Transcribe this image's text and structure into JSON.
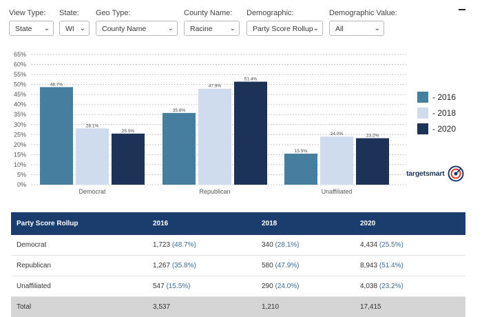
{
  "filters": [
    {
      "label": "View Type:",
      "value": "State"
    },
    {
      "label": "State:",
      "value": "WI"
    },
    {
      "label": "Geo Type:",
      "value": "County Name"
    },
    {
      "label": "County Name:",
      "value": "Racine"
    },
    {
      "label": "Demographic:",
      "value": "Party Score Rollup"
    },
    {
      "label": "Demographic Value:",
      "value": "All"
    }
  ],
  "chart_data": {
    "type": "bar",
    "categories": [
      "Democrat",
      "Republican",
      "Unaffiliated"
    ],
    "series": [
      {
        "name": "2016",
        "color": "#467e9f",
        "values": [
          48.7,
          35.8,
          15.5
        ],
        "labels": [
          "48.7%",
          "35.8%",
          "15.5%"
        ]
      },
      {
        "name": "2018",
        "color": "#cfdcee",
        "values": [
          28.1,
          47.9,
          24.0
        ],
        "labels": [
          "28.1%",
          "47.9%",
          "24.0%"
        ]
      },
      {
        "name": "2020",
        "color": "#1d3257",
        "values": [
          25.5,
          51.4,
          23.2
        ],
        "labels": [
          "25.5%",
          "51.4%",
          "23.2%"
        ]
      }
    ],
    "yticks": [
      "65%",
      "60%",
      "55%",
      "50%",
      "45%",
      "40%",
      "35%",
      "30%",
      "25%",
      "20%",
      "15%",
      "10%",
      "5%",
      "0%"
    ],
    "ylim": [
      0,
      65
    ],
    "grid": true,
    "legend_position": "right"
  },
  "legend": [
    {
      "label": "- 2016",
      "color": "#467e9f"
    },
    {
      "label": "- 2018",
      "color": "#cfdcee"
    },
    {
      "label": "- 2020",
      "color": "#1d3257"
    }
  ],
  "brand": {
    "name": "targetsmart"
  },
  "table": {
    "headers": [
      "Party Score Rollup",
      "2016",
      "2018",
      "2020"
    ],
    "rows": [
      {
        "name": "Democrat",
        "c2016": "1,723",
        "p2016": "(48.7%)",
        "c2018": "340",
        "p2018": "(28.1%)",
        "c2020": "4,434",
        "p2020": "(25.5%)"
      },
      {
        "name": "Republican",
        "c2016": "1,267",
        "p2016": "(35.8%)",
        "c2018": "580",
        "p2018": "(47.9%)",
        "c2020": "8,943",
        "p2020": "(51.4%)"
      },
      {
        "name": "Unaffiliated",
        "c2016": "547",
        "p2016": "(15.5%)",
        "c2018": "290",
        "p2018": "(24.0%)",
        "c2020": "4,038",
        "p2020": "(23.2%)"
      }
    ],
    "total": {
      "name": "Total",
      "t2016": "3,537",
      "t2018": "1,210",
      "t2020": "17,415"
    }
  }
}
